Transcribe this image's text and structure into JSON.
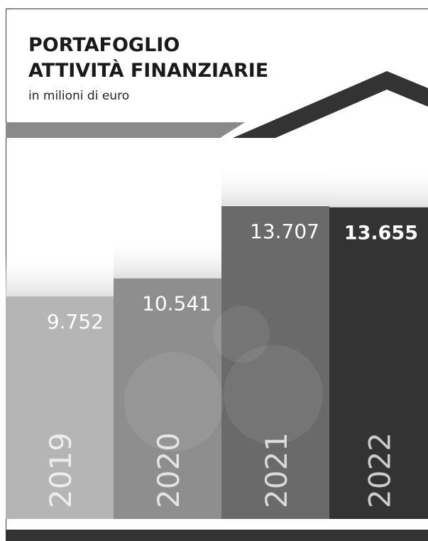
{
  "chart_data": {
    "type": "bar",
    "title": [
      "PORTAFOGLIO",
      "ATTIVITÀ FINANZIARIE"
    ],
    "subtitle": "in milioni di euro",
    "categories": [
      "2019",
      "2020",
      "2021",
      "2022"
    ],
    "values": [
      9752,
      10541,
      13707,
      13655
    ],
    "value_labels": [
      "9.752",
      "10.541",
      "13.707",
      "13.655"
    ],
    "colors": [
      "#b5b5b5",
      "#8e8e8e",
      "#6a6a6a",
      "#333333"
    ]
  }
}
